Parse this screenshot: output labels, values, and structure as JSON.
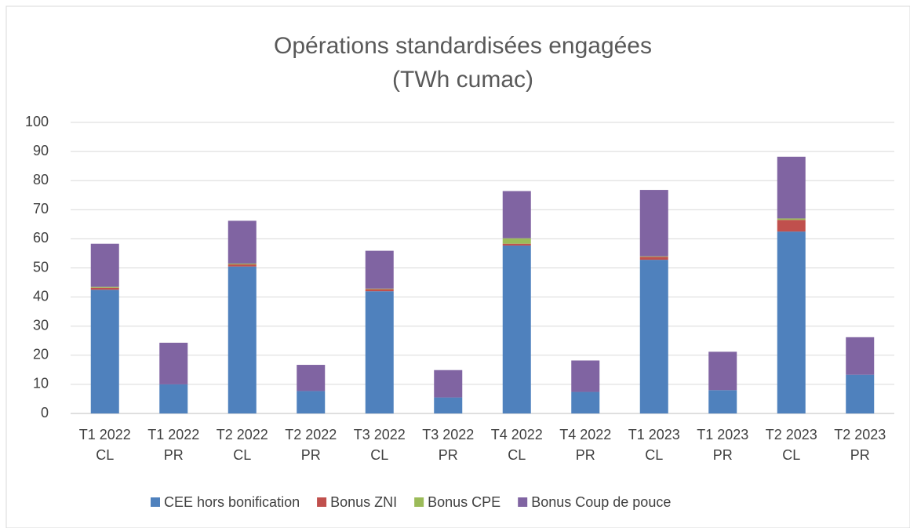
{
  "chart_data": {
    "type": "stacked_bar",
    "title": "Opérations standardisées engagées",
    "subtitle": "(TWh cumac)",
    "categories": [
      "T1 2022 CL",
      "T1 2022 PR",
      "T2 2022 CL",
      "T2 2022 PR",
      "T3 2022 CL",
      "T3 2022 PR",
      "T4 2022 CL",
      "T4 2022 PR",
      "T1 2023 CL",
      "T1 2023 PR",
      "T2 2023 CL",
      "T2 2023 PR"
    ],
    "series": [
      {
        "name": "CEE hors bonification",
        "color": "#4f81bd",
        "values": [
          42.5,
          10,
          50.5,
          7.7,
          42,
          5.5,
          57.7,
          7.4,
          52.8,
          8,
          62.5,
          13.3
        ]
      },
      {
        "name": "Bonus ZNI",
        "color": "#c0504d",
        "values": [
          0.7,
          0,
          0.7,
          0,
          0.7,
          0,
          0.6,
          0,
          1.0,
          0,
          4.0,
          0
        ]
      },
      {
        "name": "Bonus CPE",
        "color": "#9bbb59",
        "values": [
          0.3,
          0,
          0.3,
          0,
          0.2,
          0,
          1.9,
          0,
          0.2,
          0,
          0.5,
          0
        ]
      },
      {
        "name": "Bonus Coup de pouce",
        "color": "#8064a2",
        "values": [
          14.8,
          14.3,
          14.7,
          9.0,
          13.0,
          9.4,
          16.2,
          10.8,
          22.8,
          13.2,
          21.2,
          12.9
        ]
      }
    ],
    "ylim": [
      0,
      100
    ],
    "yticks": [
      0,
      10,
      20,
      30,
      40,
      50,
      60,
      70,
      80,
      90,
      100
    ],
    "grid": true,
    "legend": "bottom"
  }
}
